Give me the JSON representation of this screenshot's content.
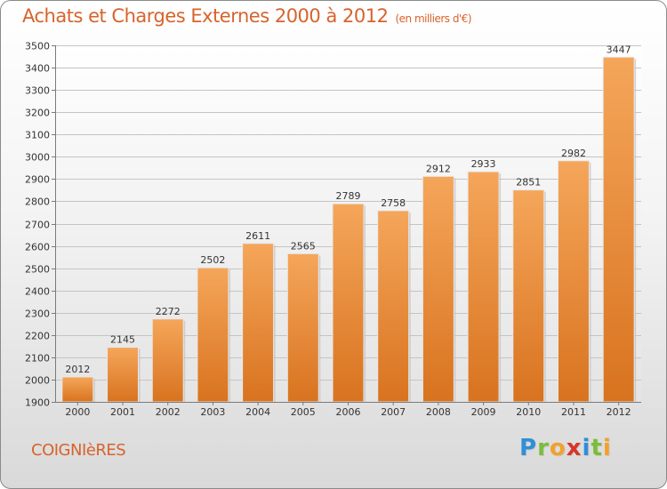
{
  "title": "Achats et Charges Externes 2000 à 2012",
  "subtitle": "(en milliers d'€)",
  "town": "COIGNIèRES",
  "brand": {
    "letters": [
      {
        "ch": "P",
        "color": "#2f8fd8"
      },
      {
        "ch": "r",
        "color": "#7bbd3a"
      },
      {
        "ch": "o",
        "color": "#f2a12c"
      },
      {
        "ch": "x",
        "color": "#d8352a"
      },
      {
        "ch": "i",
        "color": "#2f8fd8"
      },
      {
        "ch": "t",
        "color": "#7bbd3a"
      },
      {
        "ch": "i",
        "color": "#f2a12c"
      }
    ]
  },
  "colors": {
    "bar_top": "#f5a65a",
    "bar_bottom": "#d8731f",
    "title": "#d7632c"
  },
  "chart_data": {
    "type": "bar",
    "categories": [
      "2000",
      "2001",
      "2002",
      "2003",
      "2004",
      "2005",
      "2006",
      "2007",
      "2008",
      "2009",
      "2010",
      "2011",
      "2012"
    ],
    "values": [
      2012,
      2145,
      2272,
      2502,
      2611,
      2565,
      2789,
      2758,
      2912,
      2933,
      2851,
      2982,
      3447
    ],
    "title": "Achats et Charges Externes 2000 à 2012",
    "subtitle": "(en milliers d'€)",
    "xlabel": "",
    "ylabel": "",
    "ylim": [
      1900,
      3500
    ],
    "yticks": [
      1900,
      2000,
      2100,
      2200,
      2300,
      2400,
      2500,
      2600,
      2700,
      2800,
      2900,
      3000,
      3100,
      3200,
      3300,
      3400,
      3500
    ],
    "grid": true,
    "legend": "none"
  }
}
